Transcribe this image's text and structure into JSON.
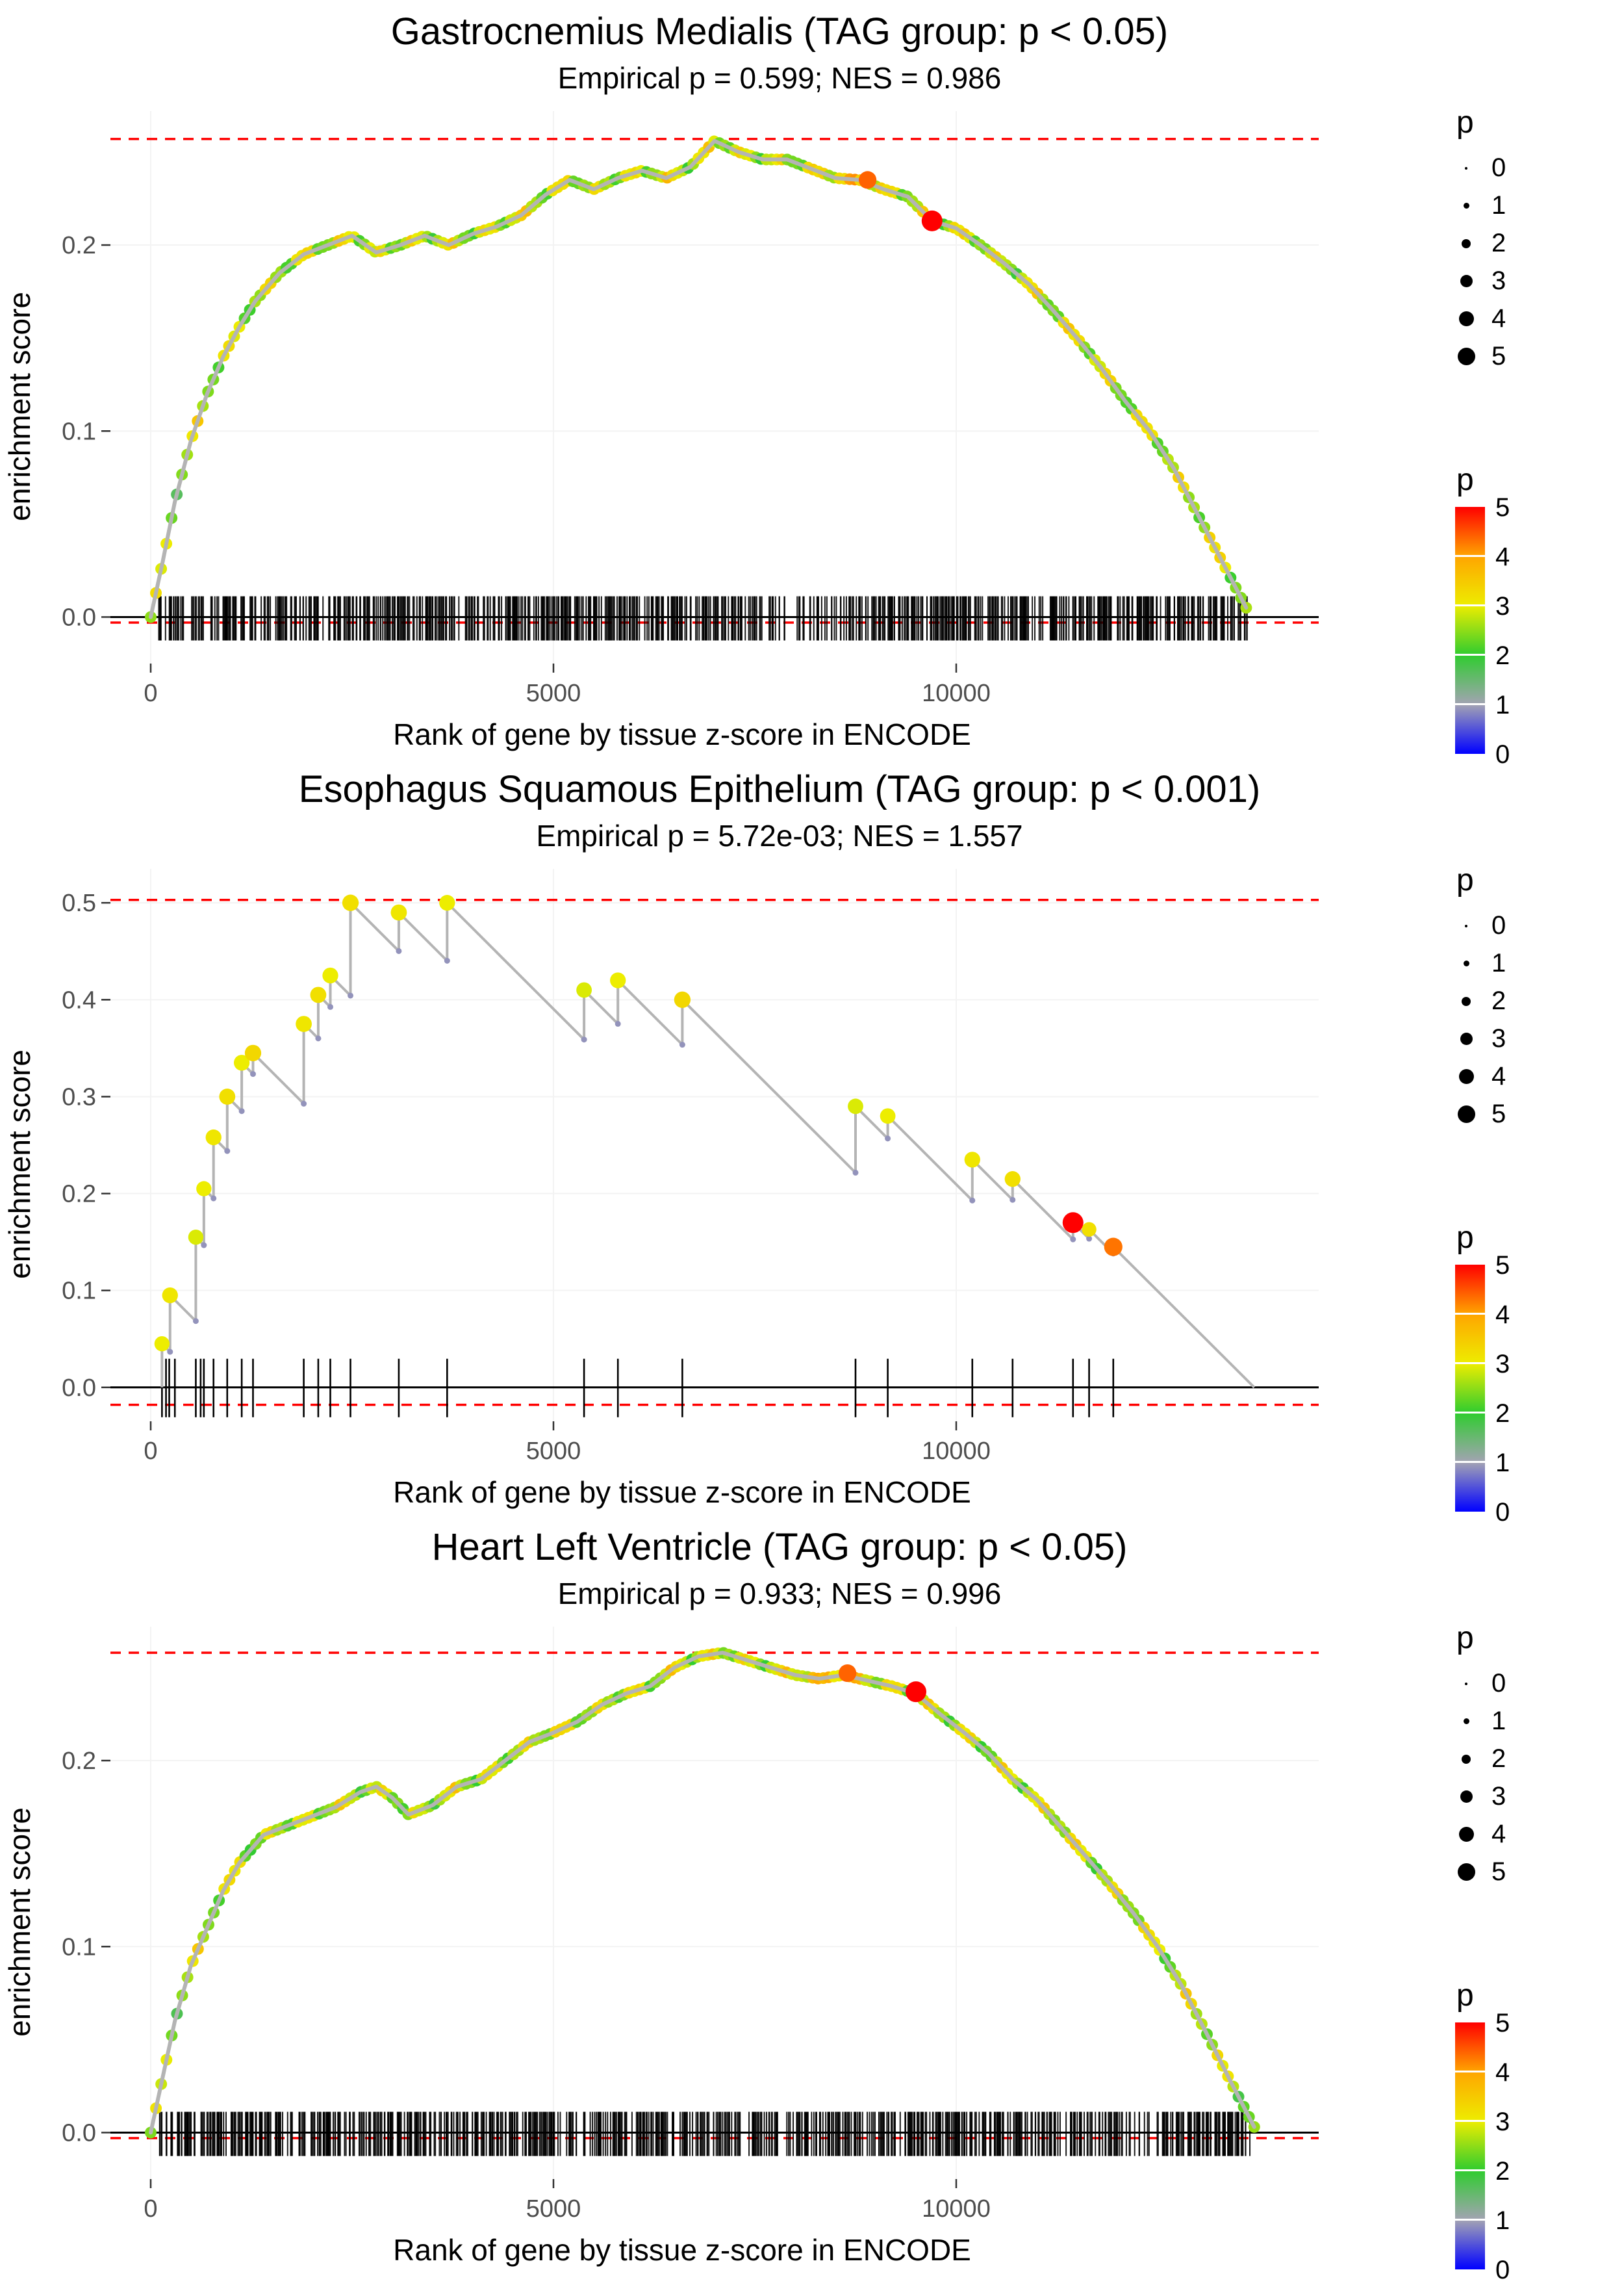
{
  "figure": {
    "background": "#FFFFFF",
    "dashed_line_color": "#FF0000",
    "curve_line_color": "#B4B4B4",
    "zero_line_color": "#000000",
    "tick_text_color": "#4D4D4D",
    "palette": [
      {
        "p": 0,
        "color": "#0000FF"
      },
      {
        "p": 1,
        "color": "#A3A3B3"
      },
      {
        "p": 2,
        "color": "#2FCC2F"
      },
      {
        "p": 3,
        "color": "#EDED00"
      },
      {
        "p": 4,
        "color": "#FFA500"
      },
      {
        "p": 5,
        "color": "#FF0000"
      }
    ],
    "legend": {
      "size_title": "p",
      "size_labels": [
        "0",
        "1",
        "2",
        "3",
        "4",
        "5"
      ],
      "color_title": "p",
      "color_labels": [
        "5",
        "4",
        "3",
        "2",
        "1",
        "0"
      ]
    }
  },
  "chart_data": [
    {
      "type": "line",
      "title": "Gastrocnemius Medialis (TAG group: p < 0.05)",
      "subtitle": "Empirical p = 0.599; NES = 0.986",
      "empirical_p": 0.599,
      "nes": 0.986,
      "xlabel": "Rank of gene by tissue z-score in ENCODE",
      "ylabel": "enrichment score",
      "xlim": [
        -500,
        14500
      ],
      "ylim": [
        -0.025,
        0.272
      ],
      "x_ticks": [
        0,
        5000,
        10000
      ],
      "x_tick_labels": [
        "0",
        "5000",
        "10000"
      ],
      "y_ticks": [
        0,
        0.1,
        0.2
      ],
      "y_tick_labels": [
        "0.0",
        "0.1",
        "0.2"
      ],
      "hlines_dashed_red": [
        0.257,
        -0.003
      ],
      "curve": {
        "x": [
          0,
          150,
          300,
          500,
          700,
          900,
          1100,
          1300,
          1600,
          1900,
          2200,
          2500,
          2800,
          3100,
          3400,
          3700,
          4000,
          4300,
          4600,
          4900,
          5200,
          5500,
          5800,
          6100,
          6400,
          6700,
          7000,
          7300,
          7600,
          7900,
          8200,
          8500,
          8800,
          9100,
          9400,
          9700,
          10000,
          10300,
          10600,
          10900,
          11200,
          11500,
          11800,
          12100,
          12400,
          12700,
          13000,
          13300,
          13600
        ],
        "es": [
          0,
          0.03,
          0.062,
          0.095,
          0.12,
          0.14,
          0.156,
          0.17,
          0.185,
          0.195,
          0.2,
          0.205,
          0.196,
          0.2,
          0.205,
          0.2,
          0.206,
          0.21,
          0.216,
          0.227,
          0.235,
          0.23,
          0.236,
          0.24,
          0.236,
          0.242,
          0.256,
          0.25,
          0.246,
          0.246,
          0.241,
          0.236,
          0.235,
          0.23,
          0.226,
          0.213,
          0.209,
          0.2,
          0.19,
          0.179,
          0.165,
          0.15,
          0.134,
          0.116,
          0.1,
          0.08,
          0.055,
          0.03,
          0.005
        ],
        "p": [
          2.5,
          2.7,
          2.4,
          2.8,
          2.6,
          2.9,
          2.5,
          2.8,
          2.6,
          2.9,
          2.7,
          3,
          2.6,
          2.8,
          2.7,
          2.9,
          2.6,
          2.8,
          3,
          2.7,
          2.9,
          2.6,
          2.8,
          2.7,
          3,
          2.8,
          2.9,
          2.7,
          2.8,
          2.6,
          2.9,
          3.2,
          3.6,
          2.9,
          2.8,
          2.7,
          2.9,
          2.8,
          2.6,
          2.9,
          2.7,
          3,
          2.8,
          2.6,
          2.9,
          2.7,
          2.8,
          2.9,
          2.6
        ]
      },
      "special_points": [
        {
          "x": 8900,
          "es": 0.235,
          "p": 4.4,
          "size": 4
        },
        {
          "x": 9700,
          "es": 0.213,
          "p": 5,
          "size": 5
        }
      ],
      "rug": {
        "style": "dense",
        "count": 820,
        "xmin": 90,
        "xmax": 13620,
        "seed": 97531
      }
    },
    {
      "type": "line",
      "title": "Esophagus Squamous Epithelium (TAG group: p < 0.001)",
      "subtitle": "Empirical p = 5.72e-03; NES = 1.557",
      "empirical_p": 0.00572,
      "nes": 1.557,
      "xlabel": "Rank of gene by tissue z-score in ENCODE",
      "ylabel": "enrichment score",
      "xlim": [
        -500,
        14500
      ],
      "ylim": [
        -0.035,
        0.535
      ],
      "x_ticks": [
        0,
        5000,
        10000
      ],
      "x_tick_labels": [
        "0",
        "5000",
        "10000"
      ],
      "y_ticks": [
        0,
        0.1,
        0.2,
        0.3,
        0.4,
        0.5
      ],
      "y_tick_labels": [
        "0.0",
        "0.1",
        "0.2",
        "0.3",
        "0.4",
        "0.5"
      ],
      "hlines_dashed_red": [
        0.503,
        -0.018
      ],
      "curve_steps": {
        "decline_rate": 8.3e-05,
        "end_x": 13700,
        "steps": [
          [
            140,
            0.045,
            3.0,
            3.2
          ],
          [
            240,
            0.095,
            3.1,
            3.4
          ],
          [
            560,
            0.155,
            2.9,
            3.2
          ],
          [
            660,
            0.205,
            3.0,
            3.2
          ],
          [
            780,
            0.258,
            3.1,
            3.4
          ],
          [
            950,
            0.3,
            3.2,
            3.5
          ],
          [
            1130,
            0.335,
            3.0,
            3.4
          ],
          [
            1270,
            0.345,
            3.3,
            3.6
          ],
          [
            1900,
            0.375,
            3.1,
            3.5
          ],
          [
            2080,
            0.405,
            3.2,
            3.5
          ],
          [
            2230,
            0.425,
            3.0,
            3.4
          ],
          [
            2480,
            0.5,
            3.2,
            3.6
          ],
          [
            3080,
            0.49,
            3.1,
            3.5
          ],
          [
            3680,
            0.5,
            3.0,
            3.4
          ],
          [
            5380,
            0.41,
            2.9,
            3.3
          ],
          [
            5800,
            0.42,
            3.0,
            3.4
          ],
          [
            6600,
            0.4,
            3.3,
            3.6
          ],
          [
            8750,
            0.29,
            2.9,
            3.3
          ],
          [
            9150,
            0.28,
            3.0,
            3.3
          ],
          [
            10200,
            0.235,
            3.1,
            3.4
          ],
          [
            10700,
            0.215,
            3.2,
            3.4
          ],
          [
            11450,
            0.17,
            5.0,
            5.0
          ],
          [
            11650,
            0.163,
            3.2,
            3.0
          ],
          [
            11950,
            0.145,
            4.3,
            4.2
          ]
        ]
      },
      "special_points": [],
      "rug": {
        "style": "sparse",
        "positions": [
          140,
          190,
          230,
          300,
          560,
          620,
          660,
          780,
          950,
          1130,
          1270,
          1900,
          2080,
          2230,
          2480,
          3080,
          3680,
          5380,
          5800,
          6600,
          8750,
          9150,
          10200,
          10700,
          11450,
          11650,
          11950
        ]
      }
    },
    {
      "type": "line",
      "title": "Heart Left Ventricle (TAG group: p < 0.05)",
      "subtitle": "Empirical p = 0.933; NES = 0.996",
      "empirical_p": 0.933,
      "nes": 0.996,
      "xlabel": "Rank of gene by tissue z-score in ENCODE",
      "ylabel": "enrichment score",
      "xlim": [
        -500,
        14500
      ],
      "ylim": [
        -0.025,
        0.272
      ],
      "x_ticks": [
        0,
        5000,
        10000
      ],
      "x_tick_labels": [
        "0",
        "5000",
        "10000"
      ],
      "y_ticks": [
        0,
        0.1,
        0.2
      ],
      "y_tick_labels": [
        "0.0",
        "0.1",
        "0.2"
      ],
      "hlines_dashed_red": [
        0.258,
        -0.003
      ],
      "curve": {
        "x": [
          0,
          150,
          300,
          500,
          700,
          900,
          1100,
          1400,
          1700,
          2000,
          2300,
          2600,
          2800,
          3000,
          3200,
          3500,
          3800,
          4100,
          4400,
          4700,
          5000,
          5300,
          5600,
          5900,
          6200,
          6500,
          6800,
          7100,
          7400,
          7700,
          8000,
          8300,
          8600,
          8900,
          9200,
          9500,
          9800,
          10100,
          10400,
          10700,
          11000,
          11300,
          11600,
          11900,
          12200,
          12500,
          12800,
          13100,
          13400,
          13700
        ],
        "es": [
          0,
          0.03,
          0.06,
          0.09,
          0.11,
          0.13,
          0.145,
          0.16,
          0.165,
          0.17,
          0.175,
          0.183,
          0.186,
          0.18,
          0.171,
          0.176,
          0.186,
          0.19,
          0.2,
          0.21,
          0.215,
          0.221,
          0.23,
          0.236,
          0.24,
          0.25,
          0.256,
          0.258,
          0.254,
          0.25,
          0.246,
          0.244,
          0.246,
          0.243,
          0.24,
          0.236,
          0.225,
          0.215,
          0.204,
          0.19,
          0.179,
          0.164,
          0.149,
          0.134,
          0.118,
          0.1,
          0.079,
          0.054,
          0.028,
          0.003
        ],
        "p": [
          2.4,
          2.6,
          2.5,
          2.8,
          2.6,
          2.9,
          2.7,
          2.5,
          2.8,
          2.6,
          2.9,
          2.7,
          2.6,
          2.8,
          2.5,
          2.7,
          2.9,
          2.6,
          2.8,
          2.7,
          3,
          2.8,
          2.6,
          2.9,
          2.7,
          3,
          2.8,
          2.9,
          2.7,
          2.8,
          3.1,
          3.4,
          3.7,
          3,
          2.8,
          2.9,
          2.7,
          2.8,
          2.6,
          2.9,
          2.7,
          3,
          2.8,
          2.6,
          2.9,
          2.7,
          2.8,
          2.9,
          2.6,
          2.5
        ]
      },
      "special_points": [
        {
          "x": 8650,
          "es": 0.247,
          "p": 4.4,
          "size": 4
        },
        {
          "x": 9500,
          "es": 0.237,
          "p": 5,
          "size": 5
        }
      ],
      "rug": {
        "style": "dense",
        "count": 830,
        "xmin": 90,
        "xmax": 13660,
        "seed": 24681
      }
    }
  ]
}
